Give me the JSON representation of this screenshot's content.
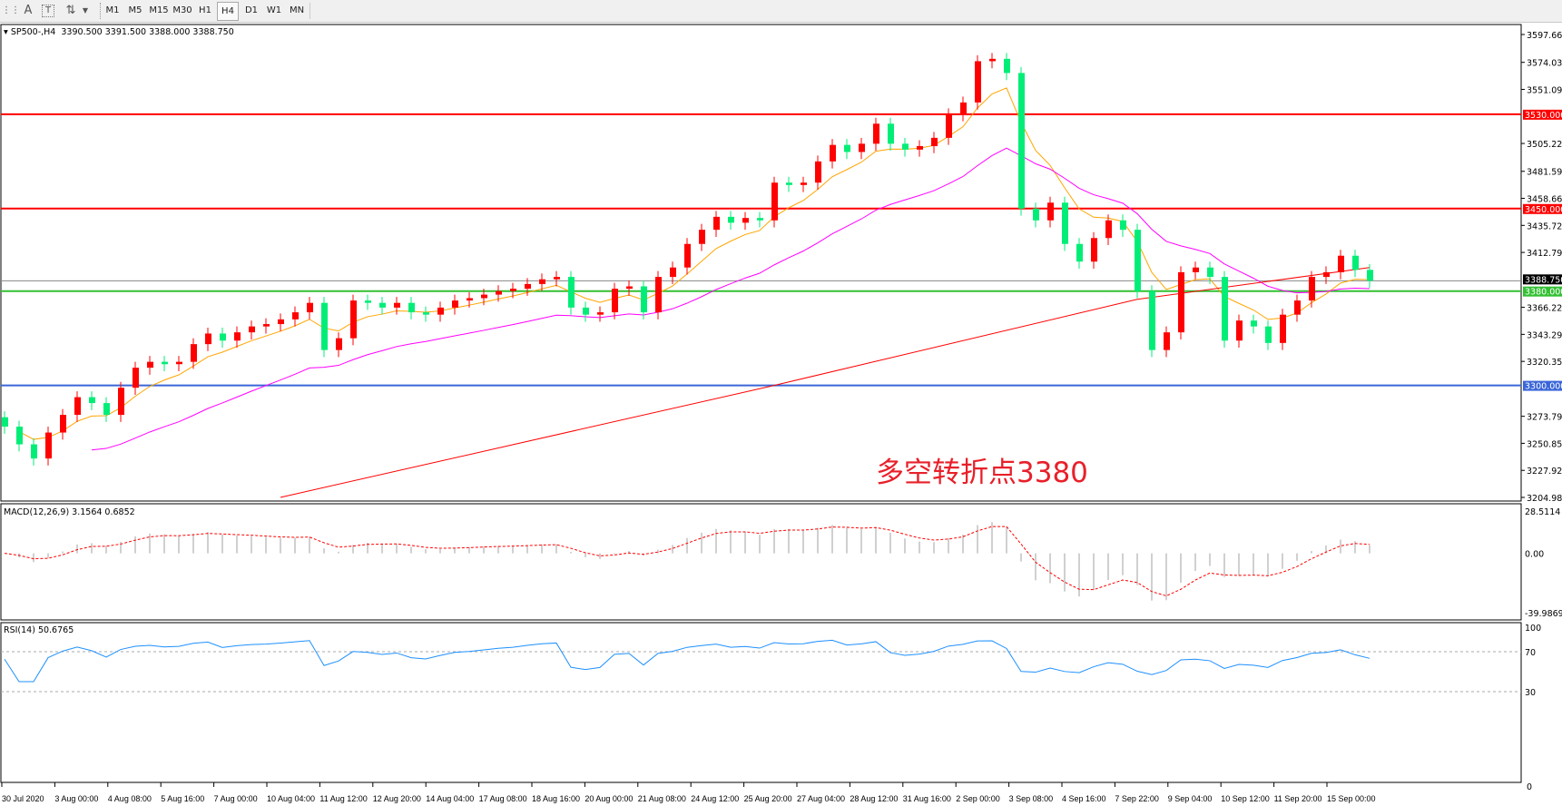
{
  "toolbar": {
    "icons": [
      "grid-icon",
      "text-a-icon",
      "text-label-icon",
      "arrows-icon"
    ],
    "timeframes": [
      "M1",
      "M5",
      "M15",
      "M30",
      "H1",
      "H4",
      "D1",
      "W1",
      "MN"
    ],
    "active_timeframe": "H4"
  },
  "header": {
    "symbol": "SP500-,H4",
    "ohlc": "3390.500 3391.500 3388.000 3388.750"
  },
  "annotation": "多空转折点3380",
  "price_axis": [
    "3597.660",
    "3574.030",
    "3551.095",
    "3505.225",
    "3481.595",
    "3458.660",
    "3435.725",
    "3412.790",
    "3366.225",
    "3343.290",
    "3320.355",
    "3273.790",
    "3250.855",
    "3227.920",
    "3204.985"
  ],
  "levels": [
    {
      "label": "3530.000",
      "value": 3530,
      "color": "#ff0000"
    },
    {
      "label": "3450.000",
      "value": 3450,
      "color": "#ff0000"
    },
    {
      "label": "3380.000",
      "value": 3380,
      "color": "#33c033"
    },
    {
      "label": "3300.000",
      "value": 3300,
      "color": "#3a66d8"
    }
  ],
  "current_price": {
    "label": "3388.750",
    "value": 3388.75,
    "color": "#888888"
  },
  "macd": {
    "title": "MACD(12,26,9) 3.1564 0.6852",
    "axis": [
      "28.5114",
      "0.00",
      "-39.9869"
    ],
    "max": 28.5114,
    "min": -39.9869
  },
  "rsi": {
    "title": "RSI(14) 50.6765",
    "axis": [
      "100",
      "70",
      "30"
    ],
    "levels": [
      70,
      30
    ]
  },
  "time_axis": [
    "30 Jul 2020",
    "3 Aug 00:00",
    "4 Aug 08:00",
    "5 Aug 16:00",
    "7 Aug 00:00",
    "10 Aug 04:00",
    "11 Aug 12:00",
    "12 Aug 20:00",
    "14 Aug 04:00",
    "17 Aug 08:00",
    "18 Aug 16:00",
    "20 Aug 00:00",
    "21 Aug 08:00",
    "24 Aug 12:00",
    "25 Aug 20:00",
    "27 Aug 04:00",
    "28 Aug 12:00",
    "31 Aug 16:00",
    "2 Sep 00:00",
    "3 Sep 08:00",
    "4 Sep 16:00",
    "7 Sep 22:00",
    "9 Sep 04:00",
    "10 Sep 12:00",
    "11 Sep 20:00",
    "15 Sep 00:00"
  ],
  "corner_value": "0",
  "chart_data": {
    "type": "candlestick",
    "title": "SP500-,H4",
    "ylim": [
      3204.985,
      3597.66
    ],
    "colors": {
      "up": "#ff0000",
      "down": "#00ee77",
      "ma_fast": "#ffa500",
      "ma_mid": "#ff00ff",
      "ma_slow": "#ff0000",
      "rsi": "#1e90ff",
      "macd_signal": "#ff0000",
      "macd_hist": "#c0c0c0"
    },
    "close": [
      3265,
      3250,
      3238,
      3260,
      3275,
      3290,
      3285,
      3275,
      3298,
      3315,
      3320,
      3318,
      3320,
      3335,
      3344,
      3338,
      3345,
      3350,
      3352,
      3356,
      3362,
      3370,
      3330,
      3340,
      3372,
      3370,
      3366,
      3370,
      3362,
      3360,
      3366,
      3372,
      3374,
      3377,
      3380,
      3382,
      3386,
      3390,
      3392,
      3366,
      3360,
      3362,
      3382,
      3384,
      3362,
      3392,
      3400,
      3420,
      3432,
      3443,
      3438,
      3442,
      3440,
      3472,
      3470,
      3472,
      3490,
      3504,
      3498,
      3505,
      3522,
      3505,
      3500,
      3503,
      3510,
      3530,
      3540,
      3575,
      3577,
      3565,
      3450,
      3440,
      3455,
      3420,
      3405,
      3425,
      3440,
      3432,
      3380,
      3330,
      3345,
      3396,
      3400,
      3392,
      3338,
      3355,
      3350,
      3336,
      3360,
      3372,
      3392,
      3396,
      3410,
      3398,
      3388.75
    ],
    "ma_slow_anchors": [
      {
        "bar": 19,
        "value": 3205
      },
      {
        "bar": 53,
        "value": 3300
      },
      {
        "bar": 78,
        "value": 3373
      },
      {
        "bar": 94,
        "value": 3400
      }
    ]
  }
}
